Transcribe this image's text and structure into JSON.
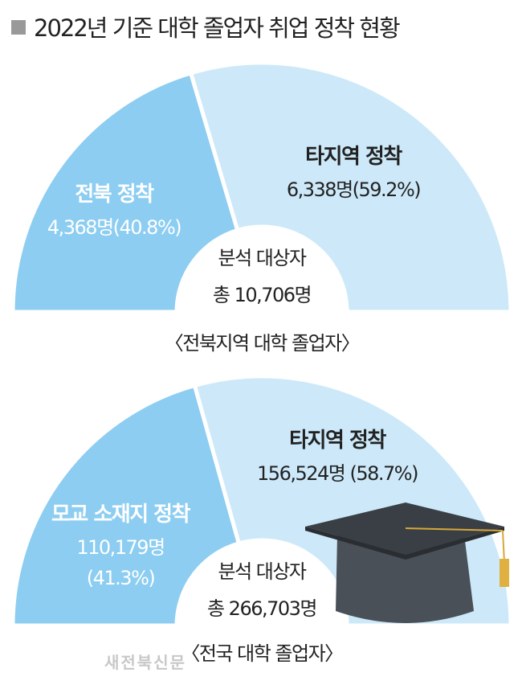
{
  "title": "2022년 기준 대학 졸업자 취업 정착 현황",
  "watermark": "새전북신문",
  "chart_data": [
    {
      "type": "pie",
      "half": true,
      "categories": [
        "전북 정착",
        "타지역 정착"
      ],
      "values": [
        4368,
        6338
      ],
      "value_labels": [
        "4,368명(40.8%)",
        "6,338명(59.2%)"
      ],
      "colors": [
        "#8ccdf1",
        "#cde9f9"
      ],
      "center_title": "분석 대상자",
      "center_total": "총 10,706명",
      "caption": "〈전북지역 대학 졸업자〉"
    },
    {
      "type": "pie",
      "half": true,
      "categories": [
        "모교 소재지 정착",
        "타지역 정착"
      ],
      "values": [
        110179,
        156524
      ],
      "value_labels": [
        "110,179명 (41.3%)",
        "156,524명 (58.7%)"
      ],
      "colors": [
        "#8ccdf1",
        "#cde9f9"
      ],
      "center_title": "분석 대상자",
      "center_total": "총 266,703명",
      "caption": "〈전국 대학 졸업자〉"
    }
  ]
}
